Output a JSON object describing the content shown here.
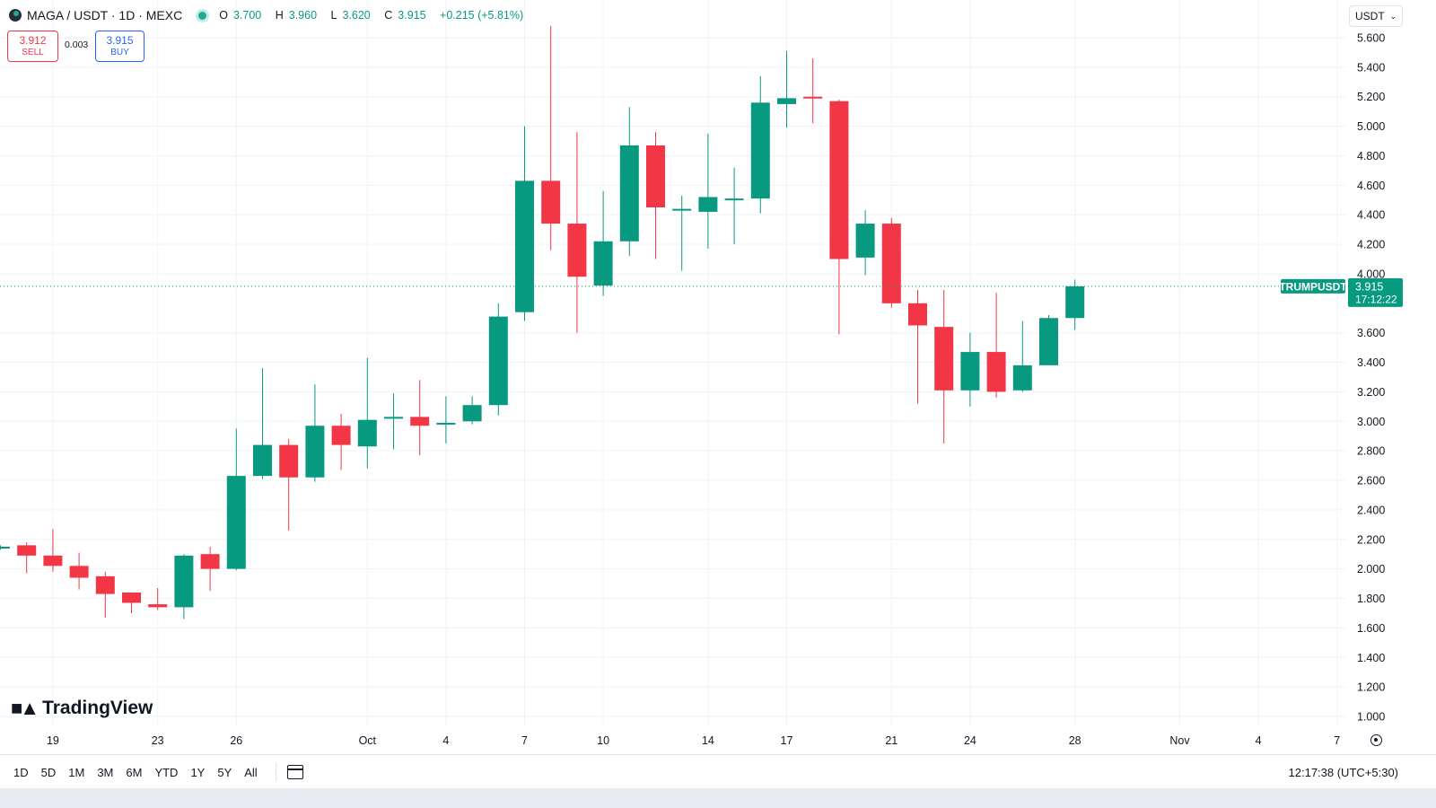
{
  "header": {
    "title": "MAGA / USDT · 1D · MEXC",
    "ohlc": {
      "open_label": "O",
      "open": "3.700",
      "high_label": "H",
      "high": "3.960",
      "low_label": "L",
      "low": "3.620",
      "close_label": "C",
      "close": "3.915",
      "change": "+0.215 (+5.81%)"
    }
  },
  "trade": {
    "sell_price": "3.912",
    "sell_label": "SELL",
    "spread": "0.003",
    "buy_price": "3.915",
    "buy_label": "BUY"
  },
  "currency_select": {
    "value": "USDT"
  },
  "logo": {
    "text": "TradingView"
  },
  "bottom_bar": {
    "ranges": [
      "1D",
      "5D",
      "1M",
      "3M",
      "6M",
      "YTD",
      "1Y",
      "5Y",
      "All"
    ],
    "time": "12:17:38 (UTC+5:30)"
  },
  "colors": {
    "up": "#089981",
    "down": "#f23645",
    "grid": "#f0f3fa",
    "axis_text": "#131722"
  },
  "chart_data": {
    "type": "candlestick",
    "symbol_label": "TRUMPUSDT",
    "last_price": "3.915",
    "countdown": "17:12:22",
    "y_axis": {
      "min": 1.0,
      "max": 5.6,
      "ticks": [
        "1.000",
        "1.200",
        "1.400",
        "1.600",
        "1.800",
        "2.000",
        "2.200",
        "2.400",
        "2.600",
        "2.800",
        "3.000",
        "3.200",
        "3.400",
        "3.600",
        "4.000",
        "4.200",
        "4.400",
        "4.600",
        "4.800",
        "5.000",
        "5.200",
        "5.400",
        "5.600"
      ]
    },
    "x_axis": {
      "ticks": [
        "19",
        "23",
        "26",
        "Oct",
        "4",
        "7",
        "10",
        "14",
        "17",
        "21",
        "24",
        "28",
        "Nov",
        "4",
        "7"
      ]
    },
    "grid": true,
    "candles": [
      {
        "o": 2.15,
        "h": 2.16,
        "l": 2.13,
        "c": 2.15
      },
      {
        "o": 2.16,
        "h": 2.18,
        "l": 1.97,
        "c": 2.09
      },
      {
        "o": 2.09,
        "h": 2.27,
        "l": 1.98,
        "c": 2.02
      },
      {
        "o": 2.02,
        "h": 2.11,
        "l": 1.86,
        "c": 1.94
      },
      {
        "o": 1.95,
        "h": 1.98,
        "l": 1.67,
        "c": 1.83
      },
      {
        "o": 1.84,
        "h": 1.84,
        "l": 1.7,
        "c": 1.77
      },
      {
        "o": 1.76,
        "h": 1.87,
        "l": 1.72,
        "c": 1.74
      },
      {
        "o": 1.74,
        "h": 2.1,
        "l": 1.66,
        "c": 2.09
      },
      {
        "o": 2.1,
        "h": 2.15,
        "l": 1.85,
        "c": 2.0
      },
      {
        "o": 2.0,
        "h": 2.95,
        "l": 1.99,
        "c": 2.63
      },
      {
        "o": 2.63,
        "h": 3.36,
        "l": 2.61,
        "c": 2.84
      },
      {
        "o": 2.84,
        "h": 2.88,
        "l": 2.26,
        "c": 2.62
      },
      {
        "o": 2.62,
        "h": 3.25,
        "l": 2.59,
        "c": 2.97
      },
      {
        "o": 2.97,
        "h": 3.05,
        "l": 2.67,
        "c": 2.84
      },
      {
        "o": 2.83,
        "h": 3.43,
        "l": 2.68,
        "c": 3.01
      },
      {
        "o": 3.02,
        "h": 3.19,
        "l": 2.81,
        "c": 3.03
      },
      {
        "o": 3.03,
        "h": 3.28,
        "l": 2.77,
        "c": 2.97
      },
      {
        "o": 2.99,
        "h": 3.17,
        "l": 2.85,
        "c": 2.99
      },
      {
        "o": 3.0,
        "h": 3.17,
        "l": 2.98,
        "c": 3.11
      },
      {
        "o": 3.11,
        "h": 3.8,
        "l": 3.04,
        "c": 3.71
      },
      {
        "o": 3.74,
        "h": 5.0,
        "l": 3.68,
        "c": 4.63
      },
      {
        "o": 4.63,
        "h": 5.68,
        "l": 4.16,
        "c": 4.34
      },
      {
        "o": 4.34,
        "h": 4.96,
        "l": 3.6,
        "c": 3.98
      },
      {
        "o": 3.92,
        "h": 4.56,
        "l": 3.85,
        "c": 4.22
      },
      {
        "o": 4.22,
        "h": 5.13,
        "l": 4.12,
        "c": 4.87
      },
      {
        "o": 4.87,
        "h": 4.96,
        "l": 4.1,
        "c": 4.45
      },
      {
        "o": 4.44,
        "h": 4.53,
        "l": 4.02,
        "c": 4.44
      },
      {
        "o": 4.42,
        "h": 4.95,
        "l": 4.17,
        "c": 4.52
      },
      {
        "o": 4.5,
        "h": 4.72,
        "l": 4.2,
        "c": 4.51
      },
      {
        "o": 4.51,
        "h": 5.34,
        "l": 4.41,
        "c": 5.16
      },
      {
        "o": 5.15,
        "h": 5.51,
        "l": 4.99,
        "c": 5.19
      },
      {
        "o": 5.2,
        "h": 5.46,
        "l": 5.02,
        "c": 5.19
      },
      {
        "o": 5.17,
        "h": 5.18,
        "l": 3.59,
        "c": 4.1
      },
      {
        "o": 4.11,
        "h": 4.43,
        "l": 3.99,
        "c": 4.34
      },
      {
        "o": 4.34,
        "h": 4.38,
        "l": 3.77,
        "c": 3.8
      },
      {
        "o": 3.8,
        "h": 3.89,
        "l": 3.12,
        "c": 3.65
      },
      {
        "o": 3.64,
        "h": 3.89,
        "l": 2.85,
        "c": 3.21
      },
      {
        "o": 3.21,
        "h": 3.6,
        "l": 3.1,
        "c": 3.47
      },
      {
        "o": 3.47,
        "h": 3.87,
        "l": 3.16,
        "c": 3.2
      },
      {
        "o": 3.21,
        "h": 3.68,
        "l": 3.2,
        "c": 3.38
      },
      {
        "o": 3.38,
        "h": 3.72,
        "l": 3.38,
        "c": 3.7
      },
      {
        "o": 3.7,
        "h": 3.96,
        "l": 3.62,
        "c": 3.915
      }
    ]
  }
}
